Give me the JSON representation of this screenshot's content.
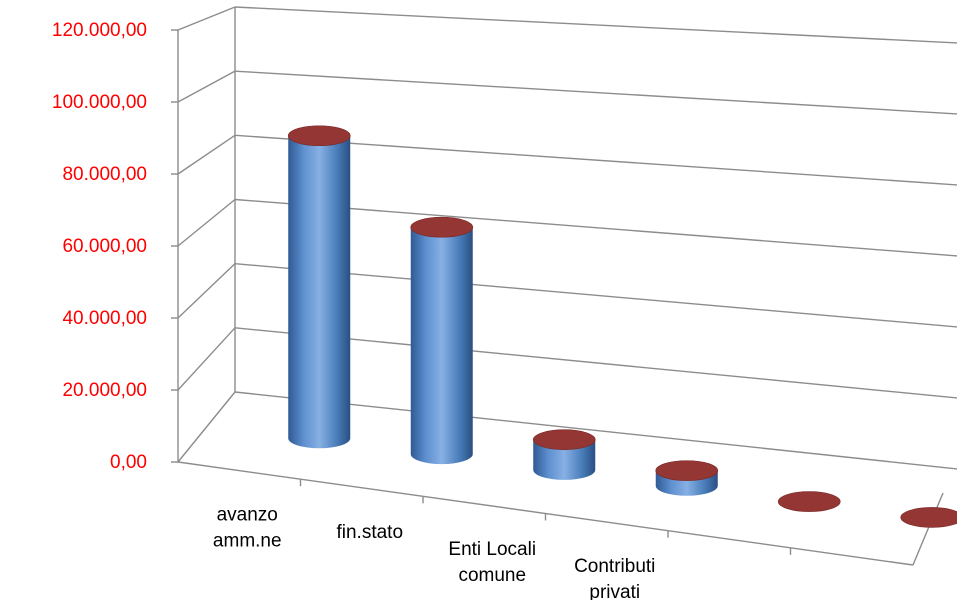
{
  "chart_data": {
    "type": "bar",
    "style": "3d-cylinder",
    "categories": [
      [
        "avanzo",
        "amm.ne"
      ],
      [
        "fin.stato"
      ],
      [
        "Enti Locali",
        "comune"
      ],
      [
        "Contributi",
        "privati"
      ],
      [
        ""
      ],
      [
        ""
      ]
    ],
    "values": [
      100000,
      75000,
      10000,
      5000,
      0,
      0
    ],
    "yticks": [
      "0,00",
      "20.000,00",
      "40.000,00",
      "60.000,00",
      "80.000,00",
      "100.000,00",
      "120.000,00"
    ],
    "ylim": [
      0,
      120000
    ],
    "grid": true,
    "legend": "none",
    "colors": {
      "tick_text": "#ff0000",
      "bar_body": "#4a7ebb",
      "bar_top": "#943634",
      "grid": "#8c8c8c"
    }
  }
}
